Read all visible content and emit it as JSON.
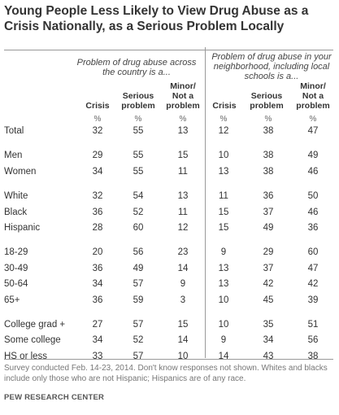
{
  "chart_data": {
    "type": "table",
    "title": "Young People Less Likely to View Drug Abuse as a Crisis Nationally, as a Serious Problem Locally",
    "groups": [
      {
        "header": "Problem of drug abuse across the country is a...",
        "columns": [
          "Crisis",
          "Serious problem",
          "Minor/ Not a problem"
        ]
      },
      {
        "header": "Problem of drug abuse in your neighborhood, including local schools is a...",
        "columns": [
          "Crisis",
          "Serious problem",
          "Minor/ Not a problem"
        ]
      }
    ],
    "unit_label": "%",
    "rows": [
      {
        "label": "Total",
        "national": [
          32,
          55,
          13
        ],
        "local": [
          12,
          38,
          47
        ]
      },
      {
        "label": "Men",
        "national": [
          29,
          55,
          15
        ],
        "local": [
          10,
          38,
          49
        ]
      },
      {
        "label": "Women",
        "national": [
          34,
          55,
          11
        ],
        "local": [
          13,
          38,
          46
        ]
      },
      {
        "label": "White",
        "national": [
          32,
          54,
          13
        ],
        "local": [
          11,
          36,
          50
        ]
      },
      {
        "label": "Black",
        "national": [
          36,
          52,
          11
        ],
        "local": [
          15,
          37,
          46
        ]
      },
      {
        "label": "Hispanic",
        "national": [
          28,
          60,
          12
        ],
        "local": [
          15,
          49,
          36
        ]
      },
      {
        "label": "18-29",
        "national": [
          20,
          56,
          23
        ],
        "local": [
          9,
          29,
          60
        ]
      },
      {
        "label": "30-49",
        "national": [
          36,
          49,
          14
        ],
        "local": [
          13,
          37,
          47
        ]
      },
      {
        "label": "50-64",
        "national": [
          34,
          57,
          9
        ],
        "local": [
          13,
          42,
          42
        ]
      },
      {
        "label": "65+",
        "national": [
          36,
          59,
          3
        ],
        "local": [
          10,
          45,
          39
        ]
      },
      {
        "label": "College grad +",
        "national": [
          27,
          57,
          15
        ],
        "local": [
          10,
          35,
          51
        ]
      },
      {
        "label": "Some college",
        "national": [
          34,
          52,
          14
        ],
        "local": [
          9,
          34,
          56
        ]
      },
      {
        "label": "HS or less",
        "national": [
          33,
          57,
          10
        ],
        "local": [
          14,
          43,
          38
        ]
      }
    ]
  },
  "note": "Survey conducted Feb. 14-23, 2014. Don't know responses not shown. Whites and blacks include only those who are not Hispanic; Hispanics are of any race.",
  "source": "PEW RESEARCH CENTER"
}
